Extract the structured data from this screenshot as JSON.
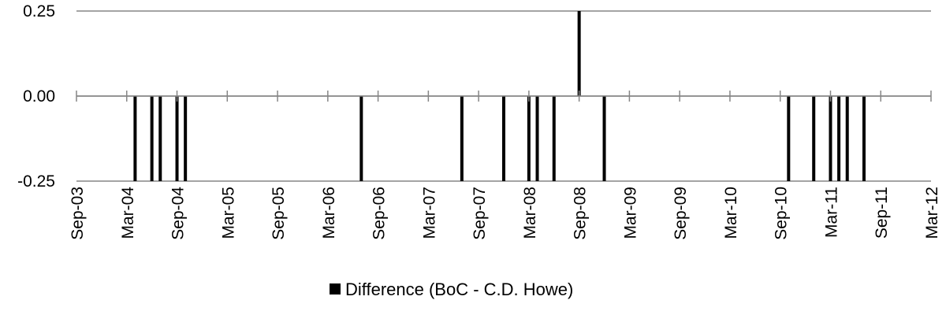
{
  "chart_data": {
    "type": "bar",
    "title": "",
    "xlabel": "",
    "ylabel": "",
    "ylim": [
      -0.25,
      0.25
    ],
    "y_ticks": [
      "0.25",
      "0.00",
      "-0.25"
    ],
    "x_tick_labels": [
      "Sep-03",
      "Mar-04",
      "Sep-04",
      "Mar-05",
      "Sep-05",
      "Mar-06",
      "Sep-06",
      "Mar-07",
      "Sep-07",
      "Mar-08",
      "Sep-08",
      "Mar-09",
      "Sep-09",
      "Mar-10",
      "Sep-10",
      "Mar-11",
      "Sep-11",
      "Mar-12"
    ],
    "grid": true,
    "legend_position": "bottom",
    "bar_color": "#000000",
    "series": [
      {
        "name": "Difference (BoC - C.D. Howe)",
        "points": [
          {
            "date": "2004-04",
            "value": -0.25
          },
          {
            "date": "2004-06",
            "value": -0.25
          },
          {
            "date": "2004-07",
            "value": -0.25
          },
          {
            "date": "2004-09",
            "value": -0.25
          },
          {
            "date": "2004-10",
            "value": -0.25
          },
          {
            "date": "2006-07",
            "value": -0.25
          },
          {
            "date": "2007-07",
            "value": -0.25
          },
          {
            "date": "2007-12",
            "value": -0.25
          },
          {
            "date": "2008-03",
            "value": -0.25
          },
          {
            "date": "2008-04",
            "value": -0.25
          },
          {
            "date": "2008-06",
            "value": -0.25
          },
          {
            "date": "2008-09",
            "value": 0.25
          },
          {
            "date": "2008-12",
            "value": -0.25
          },
          {
            "date": "2010-10",
            "value": -0.25
          },
          {
            "date": "2011-01",
            "value": -0.25
          },
          {
            "date": "2011-03",
            "value": -0.25
          },
          {
            "date": "2011-04",
            "value": -0.25
          },
          {
            "date": "2011-05",
            "value": -0.25
          },
          {
            "date": "2011-07",
            "value": -0.25
          }
        ]
      }
    ]
  }
}
